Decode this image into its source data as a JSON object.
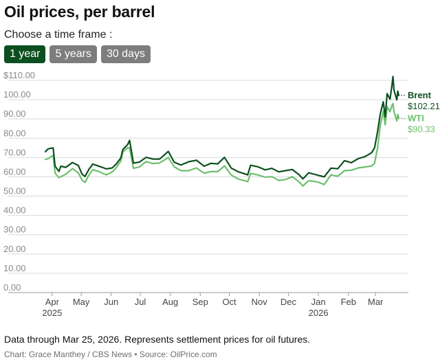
{
  "header": {
    "title": "Oil prices, per barrel",
    "prompt": "Choose a time frame :"
  },
  "timeframes": [
    {
      "label": "1 year",
      "active": true
    },
    {
      "label": "5 years",
      "active": false
    },
    {
      "label": "30 days",
      "active": false
    }
  ],
  "colors": {
    "brent": "#0c4f1f",
    "wti": "#6cbf6c",
    "grid": "#d9d9d9",
    "tick_text": "#8a8a8a",
    "month_text": "#444444",
    "button_active": "#0c4f1f",
    "button_inactive": "#7d7d7d"
  },
  "chart_data": {
    "type": "line",
    "ylim": [
      0,
      110
    ],
    "yticks": [
      "$110.00",
      "100.00",
      "90.00",
      "80.00",
      "70.00",
      "60.00",
      "50.00",
      "40.00",
      "30.00",
      "20.00",
      "10.00",
      "0.00"
    ],
    "ytick_values": [
      110,
      100,
      90,
      80,
      70,
      60,
      50,
      40,
      30,
      20,
      10,
      0
    ],
    "grid": true,
    "x_start": "2025-03-25",
    "x_end": "2026-03-25",
    "month_ticks": [
      {
        "label": "Apr",
        "year": "2025",
        "date": "2025-04-01"
      },
      {
        "label": "May",
        "year": "",
        "date": "2025-05-01"
      },
      {
        "label": "Jun",
        "year": "",
        "date": "2025-06-01"
      },
      {
        "label": "Jul",
        "year": "",
        "date": "2025-07-01"
      },
      {
        "label": "Aug",
        "year": "",
        "date": "2025-08-01"
      },
      {
        "label": "Sep",
        "year": "",
        "date": "2025-09-01"
      },
      {
        "label": "Oct",
        "year": "",
        "date": "2025-10-01"
      },
      {
        "label": "Nov",
        "year": "",
        "date": "2025-11-01"
      },
      {
        "label": "Dec",
        "year": "",
        "date": "2025-12-01"
      },
      {
        "label": "Jan",
        "year": "2026",
        "date": "2026-01-01"
      },
      {
        "label": "Feb",
        "year": "",
        "date": "2026-02-01"
      },
      {
        "label": "Mar",
        "year": "",
        "date": "2026-03-01"
      }
    ],
    "series": [
      {
        "name": "Brent",
        "end_label": "$102.21",
        "points": [
          [
            "2025-03-25",
            73.0
          ],
          [
            "2025-03-28",
            74.5
          ],
          [
            "2025-04-02",
            75.0
          ],
          [
            "2025-04-04",
            65.5
          ],
          [
            "2025-04-08",
            62.8
          ],
          [
            "2025-04-10",
            65.5
          ],
          [
            "2025-04-15",
            64.9
          ],
          [
            "2025-04-22",
            67.4
          ],
          [
            "2025-04-28",
            65.9
          ],
          [
            "2025-05-02",
            61.3
          ],
          [
            "2025-05-05",
            60.2
          ],
          [
            "2025-05-09",
            63.9
          ],
          [
            "2025-05-13",
            66.6
          ],
          [
            "2025-05-20",
            65.4
          ],
          [
            "2025-05-27",
            64.1
          ],
          [
            "2025-06-02",
            64.6
          ],
          [
            "2025-06-06",
            66.5
          ],
          [
            "2025-06-11",
            69.8
          ],
          [
            "2025-06-13",
            74.2
          ],
          [
            "2025-06-18",
            76.7
          ],
          [
            "2025-06-20",
            78.9
          ],
          [
            "2025-06-24",
            67.1
          ],
          [
            "2025-06-30",
            67.6
          ],
          [
            "2025-07-07",
            70.1
          ],
          [
            "2025-07-14",
            69.2
          ],
          [
            "2025-07-21",
            69.2
          ],
          [
            "2025-07-30",
            73.2
          ],
          [
            "2025-08-05",
            67.6
          ],
          [
            "2025-08-12",
            66.1
          ],
          [
            "2025-08-20",
            67.8
          ],
          [
            "2025-08-28",
            68.6
          ],
          [
            "2025-09-05",
            65.5
          ],
          [
            "2025-09-12",
            67.0
          ],
          [
            "2025-09-19",
            66.7
          ],
          [
            "2025-09-26",
            70.1
          ],
          [
            "2025-10-03",
            64.5
          ],
          [
            "2025-10-10",
            62.7
          ],
          [
            "2025-10-20",
            61.0
          ],
          [
            "2025-10-23",
            66.0
          ],
          [
            "2025-10-31",
            65.1
          ],
          [
            "2025-11-07",
            63.6
          ],
          [
            "2025-11-14",
            64.4
          ],
          [
            "2025-11-21",
            62.6
          ],
          [
            "2025-11-28",
            63.2
          ],
          [
            "2025-12-05",
            63.8
          ],
          [
            "2025-12-12",
            61.1
          ],
          [
            "2025-12-16",
            58.9
          ],
          [
            "2025-12-22",
            62.1
          ],
          [
            "2025-12-31",
            60.9
          ],
          [
            "2026-01-07",
            60.0
          ],
          [
            "2026-01-14",
            64.5
          ],
          [
            "2026-01-21",
            64.2
          ],
          [
            "2026-01-28",
            68.4
          ],
          [
            "2026-02-04",
            67.3
          ],
          [
            "2026-02-11",
            69.4
          ],
          [
            "2026-02-18",
            70.4
          ],
          [
            "2026-02-25",
            72.5
          ],
          [
            "2026-02-28",
            75.0
          ],
          [
            "2026-03-03",
            83.0
          ],
          [
            "2026-03-06",
            92.7
          ],
          [
            "2026-03-09",
            98.9
          ],
          [
            "2026-03-11",
            91.0
          ],
          [
            "2026-03-13",
            103.1
          ],
          [
            "2026-03-16",
            100.2
          ],
          [
            "2026-03-18",
            107.4
          ],
          [
            "2026-03-19",
            112.0
          ],
          [
            "2026-03-20",
            105.0
          ],
          [
            "2026-03-23",
            99.9
          ],
          [
            "2026-03-24",
            104.4
          ],
          [
            "2026-03-25",
            102.21
          ]
        ]
      },
      {
        "name": "WTI",
        "end_label": "$90.33",
        "points": [
          [
            "2025-03-25",
            69.0
          ],
          [
            "2025-03-28",
            69.4
          ],
          [
            "2025-04-02",
            71.2
          ],
          [
            "2025-04-04",
            61.9
          ],
          [
            "2025-04-08",
            59.6
          ],
          [
            "2025-04-10",
            60.1
          ],
          [
            "2025-04-15",
            61.3
          ],
          [
            "2025-04-22",
            64.3
          ],
          [
            "2025-04-28",
            62.0
          ],
          [
            "2025-05-02",
            58.3
          ],
          [
            "2025-05-05",
            57.1
          ],
          [
            "2025-05-09",
            61.0
          ],
          [
            "2025-05-13",
            63.7
          ],
          [
            "2025-05-20",
            62.6
          ],
          [
            "2025-05-27",
            61.0
          ],
          [
            "2025-06-02",
            62.5
          ],
          [
            "2025-06-06",
            64.6
          ],
          [
            "2025-06-11",
            68.2
          ],
          [
            "2025-06-13",
            72.9
          ],
          [
            "2025-06-18",
            75.1
          ],
          [
            "2025-06-20",
            74.9
          ],
          [
            "2025-06-24",
            64.4
          ],
          [
            "2025-06-30",
            65.1
          ],
          [
            "2025-07-07",
            67.9
          ],
          [
            "2025-07-14",
            66.9
          ],
          [
            "2025-07-21",
            67.2
          ],
          [
            "2025-07-30",
            70.0
          ],
          [
            "2025-08-05",
            65.2
          ],
          [
            "2025-08-12",
            63.2
          ],
          [
            "2025-08-20",
            63.2
          ],
          [
            "2025-08-28",
            64.6
          ],
          [
            "2025-09-05",
            61.9
          ],
          [
            "2025-09-12",
            62.7
          ],
          [
            "2025-09-19",
            62.7
          ],
          [
            "2025-09-26",
            65.7
          ],
          [
            "2025-10-03",
            60.9
          ],
          [
            "2025-10-10",
            58.9
          ],
          [
            "2025-10-20",
            57.5
          ],
          [
            "2025-10-23",
            61.8
          ],
          [
            "2025-10-31",
            60.9
          ],
          [
            "2025-11-07",
            59.8
          ],
          [
            "2025-11-14",
            60.1
          ],
          [
            "2025-11-21",
            58.1
          ],
          [
            "2025-11-28",
            58.6
          ],
          [
            "2025-12-05",
            60.1
          ],
          [
            "2025-12-12",
            57.4
          ],
          [
            "2025-12-16",
            55.3
          ],
          [
            "2025-12-22",
            58.0
          ],
          [
            "2025-12-31",
            57.4
          ],
          [
            "2026-01-07",
            56.0
          ],
          [
            "2026-01-14",
            61.0
          ],
          [
            "2026-01-21",
            60.3
          ],
          [
            "2026-01-28",
            63.2
          ],
          [
            "2026-02-04",
            63.4
          ],
          [
            "2026-02-11",
            64.6
          ],
          [
            "2026-02-18",
            65.1
          ],
          [
            "2026-02-25",
            65.6
          ],
          [
            "2026-02-28",
            67.0
          ],
          [
            "2026-03-03",
            74.6
          ],
          [
            "2026-03-06",
            87.0
          ],
          [
            "2026-03-09",
            94.0
          ],
          [
            "2026-03-11",
            86.9
          ],
          [
            "2026-03-13",
            96.3
          ],
          [
            "2026-03-16",
            93.8
          ],
          [
            "2026-03-18",
            97.0
          ],
          [
            "2026-03-19",
            98.0
          ],
          [
            "2026-03-20",
            94.0
          ],
          [
            "2026-03-23",
            89.0
          ],
          [
            "2026-03-24",
            92.3
          ],
          [
            "2026-03-25",
            90.33
          ]
        ]
      }
    ]
  },
  "footer": {
    "note": "Data through Mar 25, 2026. Represents settlement prices for oil futures.",
    "credit": "Chart: Grace Manthey / CBS News • Source: OilPrice.com"
  }
}
